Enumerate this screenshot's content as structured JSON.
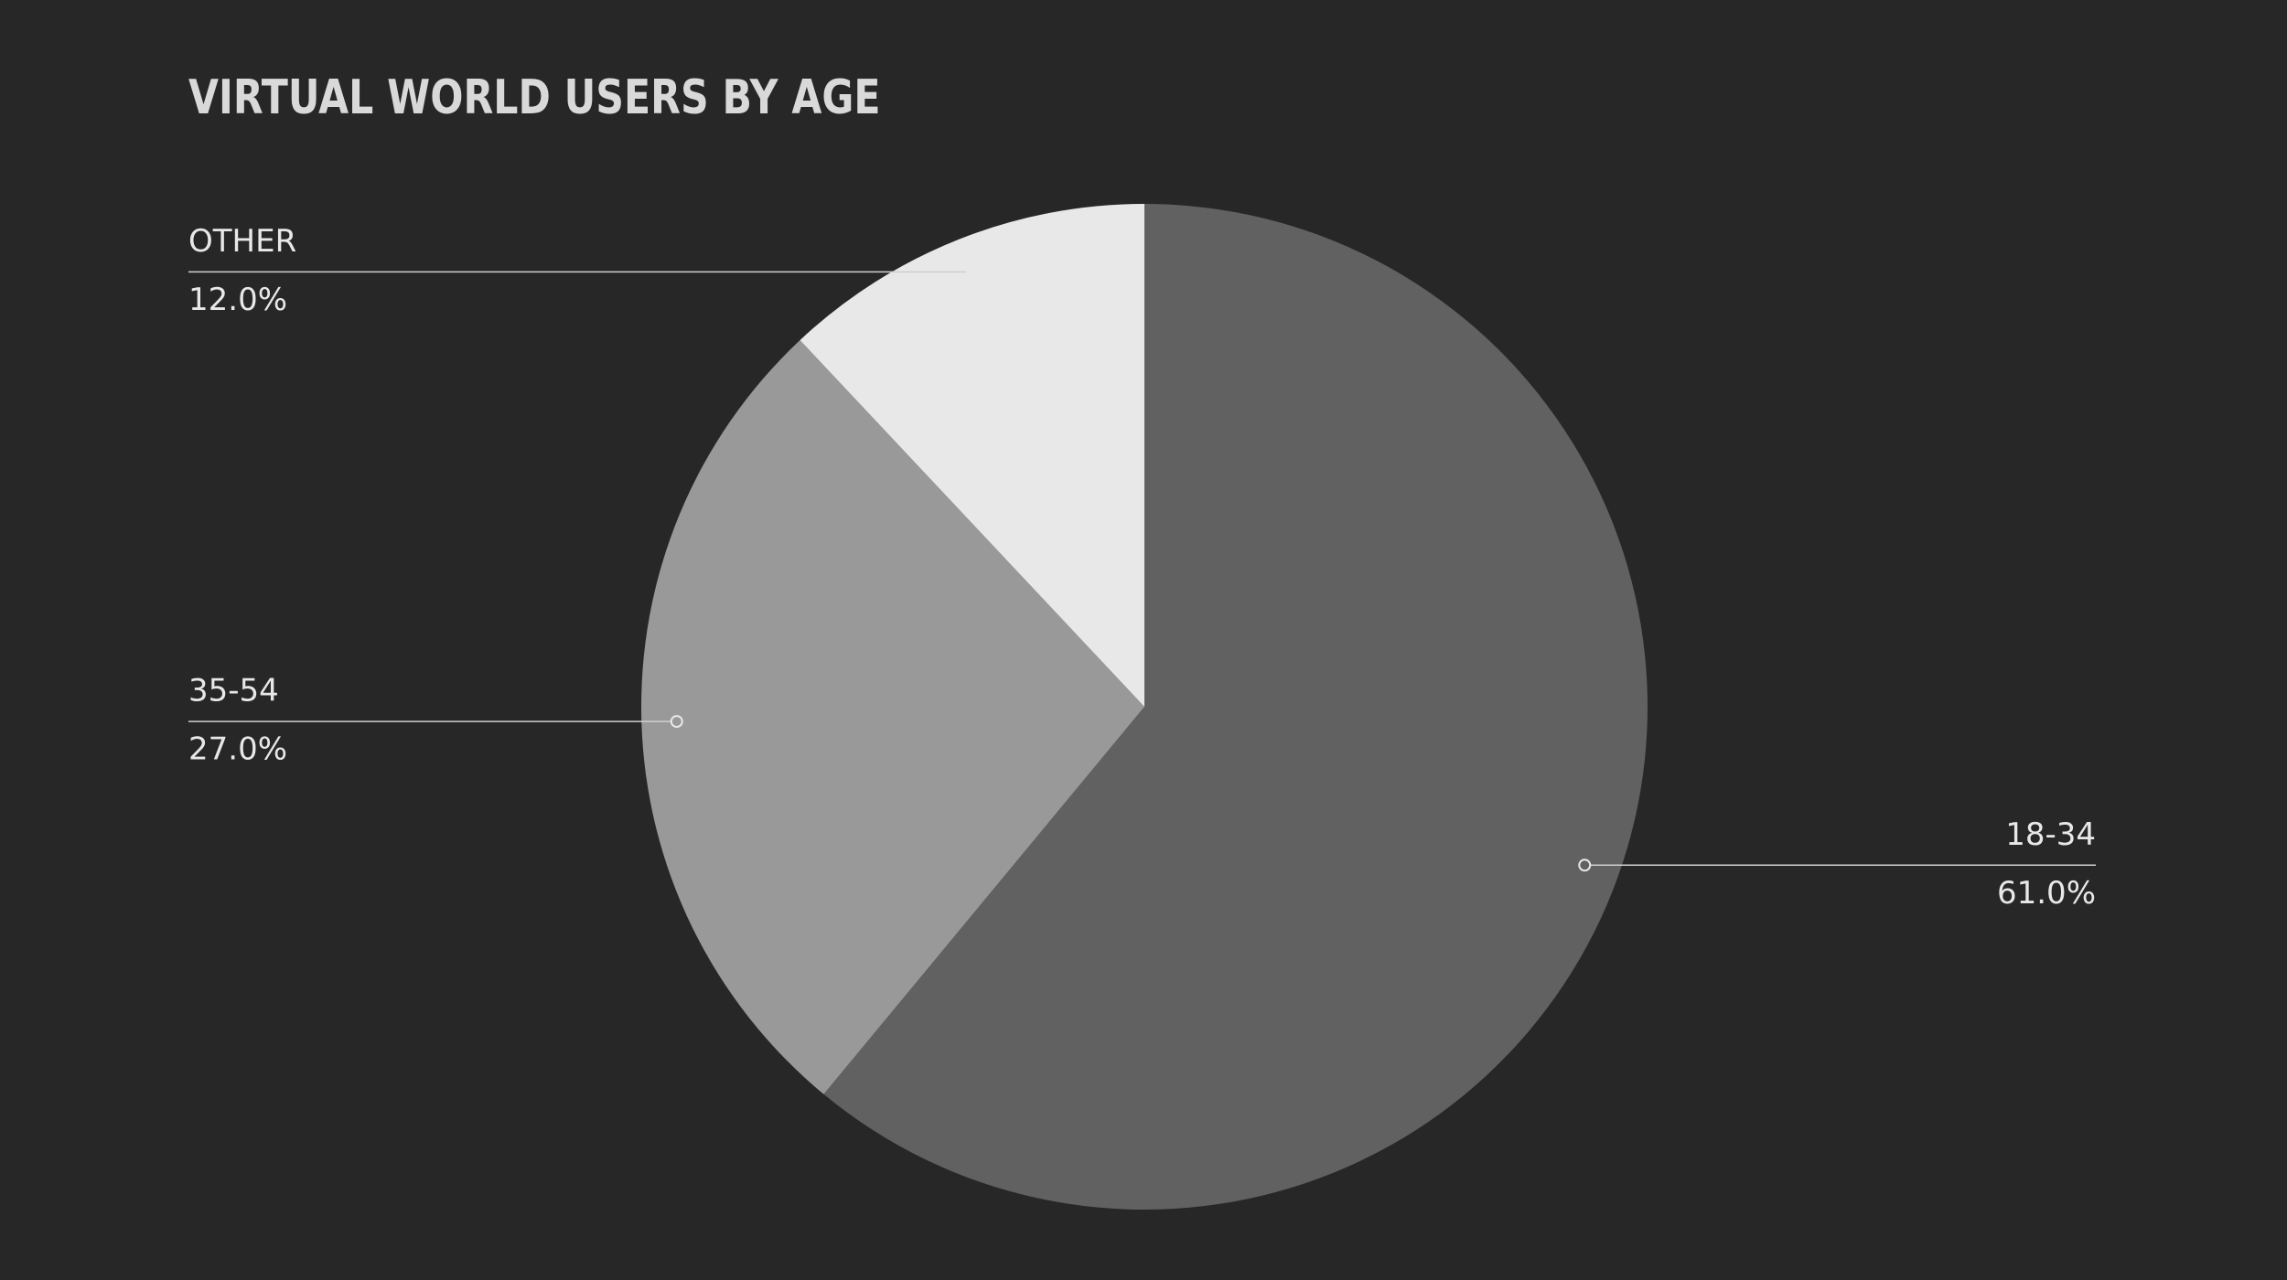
{
  "chart_data": {
    "type": "pie",
    "title": "VIRTUAL WORLD USERS BY AGE",
    "categories": [
      "18-34",
      "35-54",
      "OTHER"
    ],
    "values": [
      61,
      27,
      12
    ],
    "value_labels": [
      "61.0%",
      "27.0%",
      "12.0%"
    ],
    "colors": [
      "#616161",
      "#999999",
      "#e8e8e8"
    ]
  }
}
